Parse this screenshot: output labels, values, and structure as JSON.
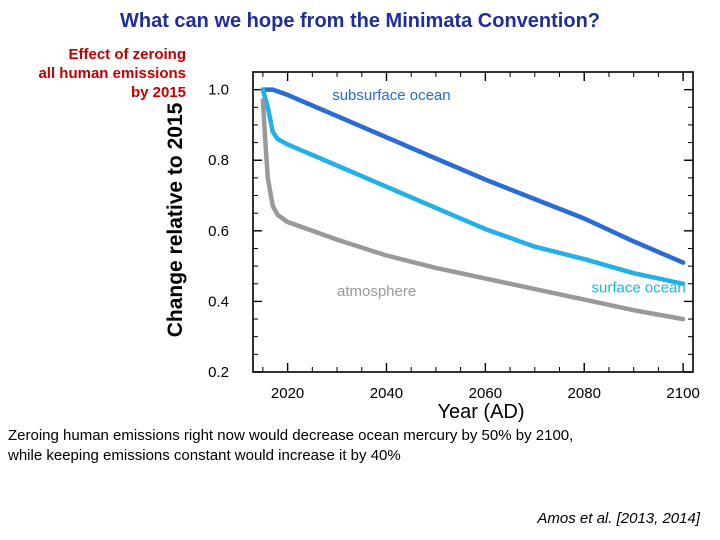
{
  "slide": {
    "title": "What can we hope from the Minimata Convention?",
    "side_note": [
      "Effect of zeroing",
      "all human emissions",
      "by 2015"
    ],
    "caption": [
      "Zeroing human emissions right now would decrease ocean mercury by 50% by 2100,",
      "while keeping emissions constant would increase it by 40%"
    ],
    "citation": "Amos et al. [2013, 2014]"
  },
  "chart_data": {
    "type": "line",
    "title": "",
    "xlabel": "Year (AD)",
    "ylabel": "Change relative to 2015",
    "xlim": [
      2013,
      2102
    ],
    "ylim": [
      0.2,
      1.05
    ],
    "xticks": [
      2020,
      2040,
      2060,
      2080,
      2100
    ],
    "yticks": [
      0.2,
      0.4,
      0.6,
      0.8,
      1.0
    ],
    "ytick_labels": [
      "0.2",
      "0.4",
      "0.6",
      "0.8",
      "1.0"
    ],
    "grid": false,
    "series": [
      {
        "name": "subsurface ocean",
        "color": "#2a6bd6",
        "x": [
          2015,
          2017,
          2020,
          2025,
          2030,
          2040,
          2050,
          2060,
          2070,
          2080,
          2090,
          2100
        ],
        "y": [
          1.0,
          1.0,
          0.985,
          0.955,
          0.925,
          0.865,
          0.805,
          0.745,
          0.69,
          0.635,
          0.57,
          0.51
        ]
      },
      {
        "name": "surface ocean",
        "color": "#22b0e8",
        "x": [
          2015,
          2016,
          2017,
          2018,
          2020,
          2025,
          2030,
          2040,
          2050,
          2060,
          2070,
          2080,
          2090,
          2100
        ],
        "y": [
          1.0,
          0.95,
          0.88,
          0.86,
          0.845,
          0.815,
          0.785,
          0.725,
          0.665,
          0.605,
          0.555,
          0.52,
          0.48,
          0.45
        ]
      },
      {
        "name": "atmosphere",
        "color": "#999999",
        "x": [
          2015,
          2015.5,
          2016,
          2017,
          2018,
          2020,
          2025,
          2030,
          2040,
          2050,
          2060,
          2070,
          2080,
          2090,
          2100
        ],
        "y": [
          0.97,
          0.85,
          0.75,
          0.67,
          0.645,
          0.625,
          0.6,
          0.575,
          0.53,
          0.495,
          0.465,
          0.435,
          0.405,
          0.375,
          0.35
        ]
      }
    ],
    "annotations": [
      {
        "text": "subsurface ocean",
        "series": "subsurface ocean",
        "at_x": 2041,
        "at_y": 0.97
      },
      {
        "text": "surface ocean",
        "series": "surface ocean",
        "at_x": 2091,
        "at_y": 0.425
      },
      {
        "text": "atmosphere",
        "series": "atmosphere",
        "at_x": 2038,
        "at_y": 0.415
      }
    ]
  }
}
